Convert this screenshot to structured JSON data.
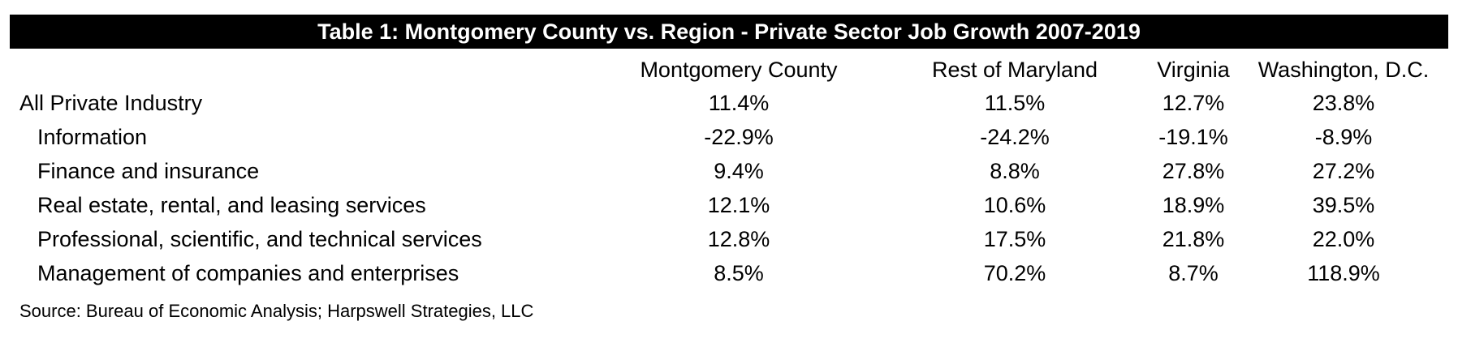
{
  "table": {
    "title": "Table 1: Montgomery County vs. Region - Private Sector Job Growth 2007-2019",
    "columns": [
      "Montgomery County",
      "Rest of Maryland",
      "Virginia",
      "Washington, D.C."
    ],
    "rows": [
      {
        "label": "All Private Industry",
        "indent": false,
        "values": [
          "11.4%",
          "11.5%",
          "12.7%",
          "23.8%"
        ]
      },
      {
        "label": "Information",
        "indent": true,
        "values": [
          "-22.9%",
          "-24.2%",
          "-19.1%",
          "-8.9%"
        ]
      },
      {
        "label": "Finance and insurance",
        "indent": true,
        "values": [
          "9.4%",
          "8.8%",
          "27.8%",
          "27.2%"
        ]
      },
      {
        "label": "Real estate, rental, and leasing services",
        "indent": true,
        "values": [
          "12.1%",
          "10.6%",
          "18.9%",
          "39.5%"
        ]
      },
      {
        "label": "Professional, scientific, and technical services",
        "indent": true,
        "values": [
          "12.8%",
          "17.5%",
          "21.8%",
          "22.0%"
        ]
      },
      {
        "label": "Management of companies and enterprises",
        "indent": true,
        "values": [
          "8.5%",
          "70.2%",
          "8.7%",
          "118.9%"
        ]
      }
    ],
    "source": "Source: Bureau of Economic Analysis; Harpswell Strategies, LLC"
  }
}
